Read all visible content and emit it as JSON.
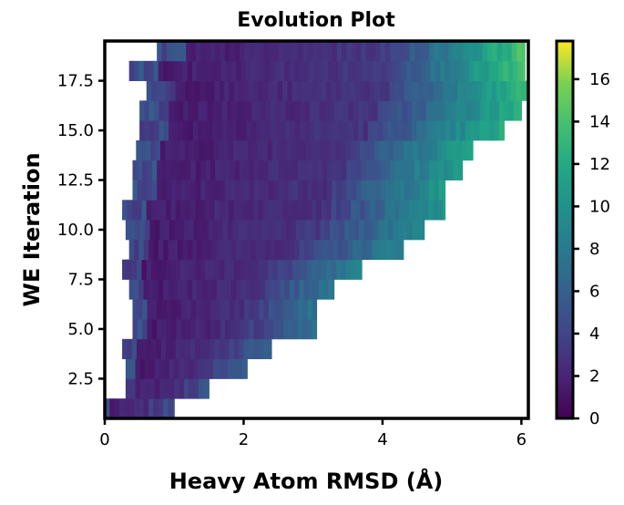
{
  "chart_data": {
    "type": "heatmap",
    "title": "Evolution Plot",
    "xlabel": "Heavy Atom RMSD (Å)",
    "ylabel": "WE Iteration",
    "xlim": [
      0,
      6.1
    ],
    "ylim": [
      0.5,
      19.5
    ],
    "xticks": [
      0,
      2,
      4,
      6
    ],
    "xtick_labels": [
      "0",
      "2",
      "4",
      "6"
    ],
    "yticks": [
      2.5,
      5.0,
      7.5,
      10.0,
      12.5,
      15.0,
      17.5
    ],
    "ytick_labels": [
      "2.5",
      "5.0",
      "7.5",
      "10.0",
      "12.5",
      "15.0",
      "17.5"
    ],
    "colormap": "viridis",
    "colorbar": {
      "range": [
        0,
        17.8
      ],
      "ticks": [
        0,
        2,
        4,
        6,
        8,
        10,
        12,
        14,
        16
      ],
      "tick_labels": [
        "0",
        "2",
        "4",
        "6",
        "8",
        "10",
        "12",
        "14",
        "16"
      ]
    },
    "iterations": [
      1,
      2,
      3,
      4,
      5,
      6,
      7,
      8,
      9,
      10,
      11,
      12,
      13,
      14,
      15,
      16,
      17,
      18,
      19
    ],
    "extent": {
      "rmsd_min": [
        0.0,
        0.3,
        0.3,
        0.25,
        0.4,
        0.4,
        0.35,
        0.25,
        0.35,
        0.3,
        0.25,
        0.4,
        0.4,
        0.45,
        0.5,
        0.5,
        0.6,
        0.35,
        0.75
      ],
      "rmsd_max": [
        1.0,
        1.5,
        2.05,
        2.4,
        3.05,
        3.05,
        3.3,
        3.7,
        4.3,
        4.6,
        4.9,
        4.9,
        5.15,
        5.3,
        5.75,
        6.0,
        6.1,
        6.05,
        6.05
      ]
    },
    "grid": false,
    "legend": "colorbar-right"
  }
}
